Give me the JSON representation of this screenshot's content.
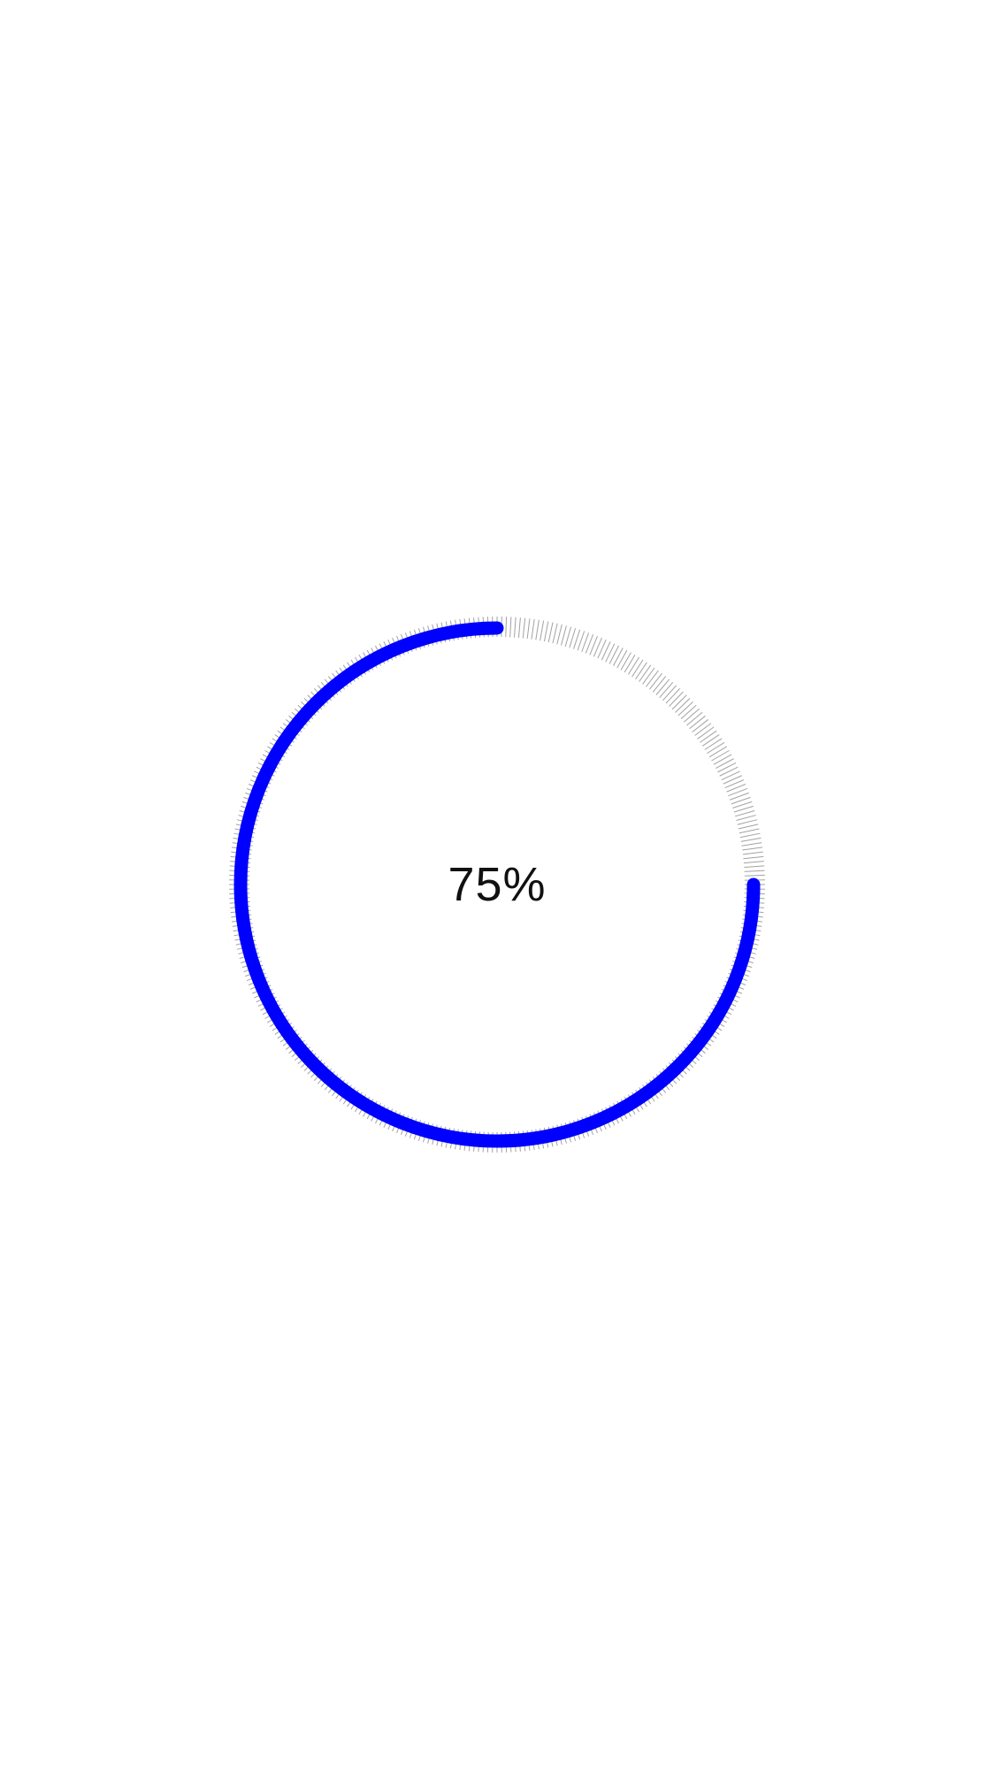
{
  "progress": {
    "value": 0.75,
    "label": "75%",
    "track_color": "#c8c8c8",
    "tick_color": "#555555",
    "fill_color": "#0000ff"
  }
}
